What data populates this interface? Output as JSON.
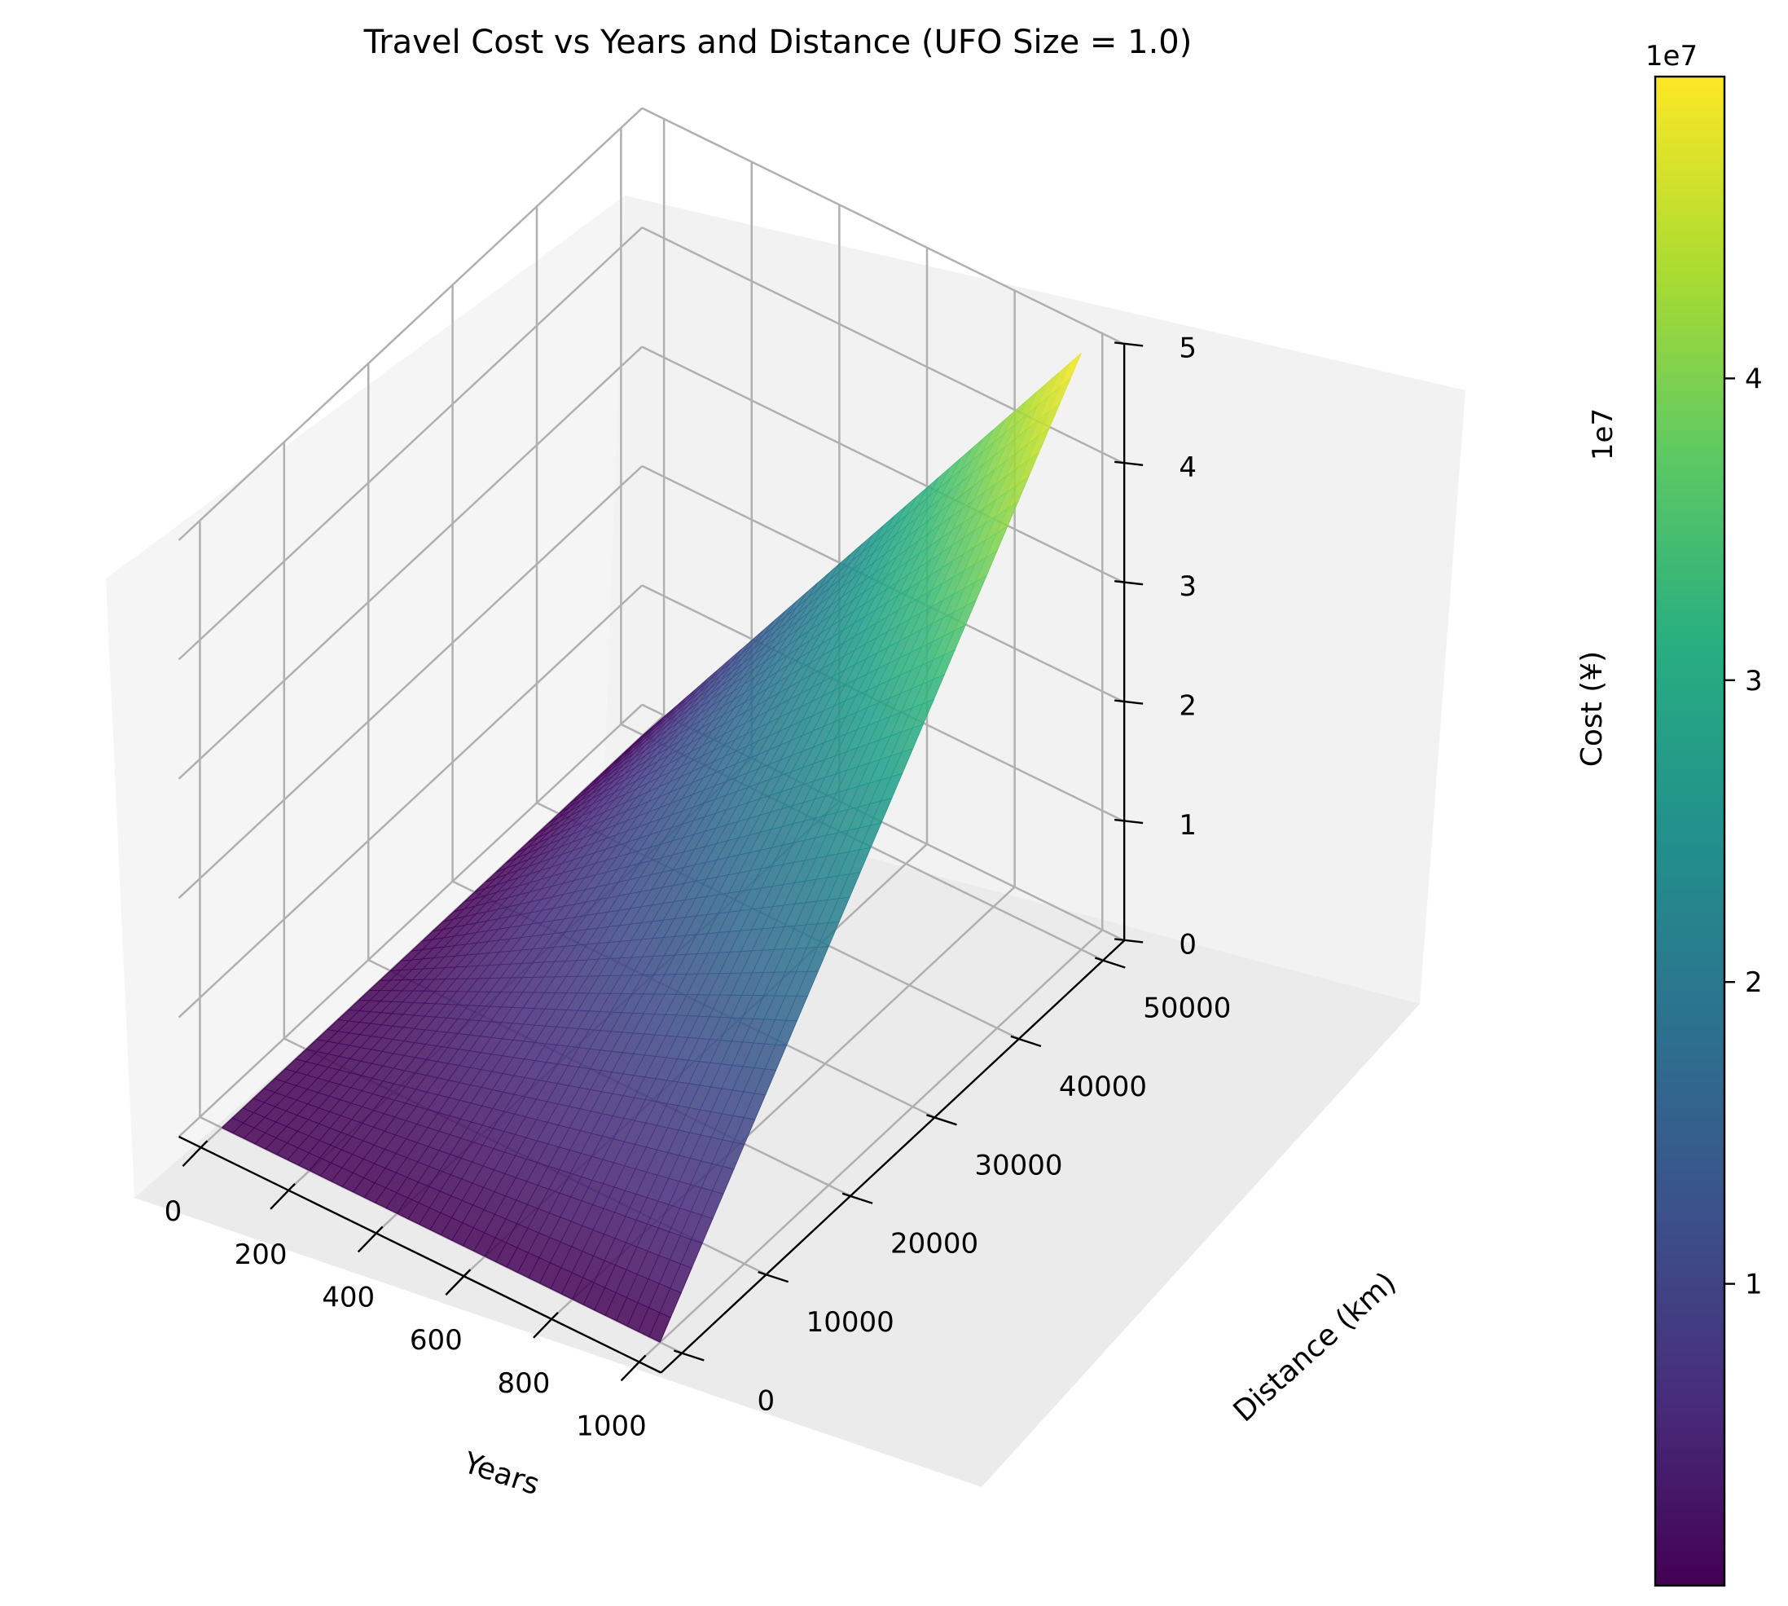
{
  "chart_data": {
    "type": "surface",
    "title": "Travel Cost vs Years and Distance (UFO Size = 1.0)",
    "xlabel": "Years",
    "ylabel": "Distance (km)",
    "zlabel": "Cost (¥)",
    "x_ticks": [
      "0",
      "200",
      "400",
      "600",
      "800",
      "1000"
    ],
    "y_ticks": [
      "0",
      "10000",
      "20000",
      "30000",
      "40000",
      "50000"
    ],
    "z_ticks": [
      "0",
      "1",
      "2",
      "3",
      "4",
      "5"
    ],
    "z_offset_text": "1e7",
    "xlim": [
      -50,
      1050
    ],
    "ylim": [
      -2500,
      52500
    ],
    "zlim": [
      0,
      50000000
    ],
    "colormap": "viridis",
    "grid": true,
    "surface_corners": [
      {
        "years": 0,
        "distance_km": 0,
        "cost": 0
      },
      {
        "years": 1000,
        "distance_km": 0,
        "cost": 0
      },
      {
        "years": 1000,
        "distance_km": 50000,
        "cost": 50000000
      },
      {
        "years": 0,
        "distance_km": 50000,
        "cost": 0
      }
    ],
    "colorbar": {
      "ticks": [
        "1",
        "2",
        "3",
        "4"
      ],
      "offset_text": "1e7",
      "range": [
        0,
        50000000
      ]
    }
  }
}
